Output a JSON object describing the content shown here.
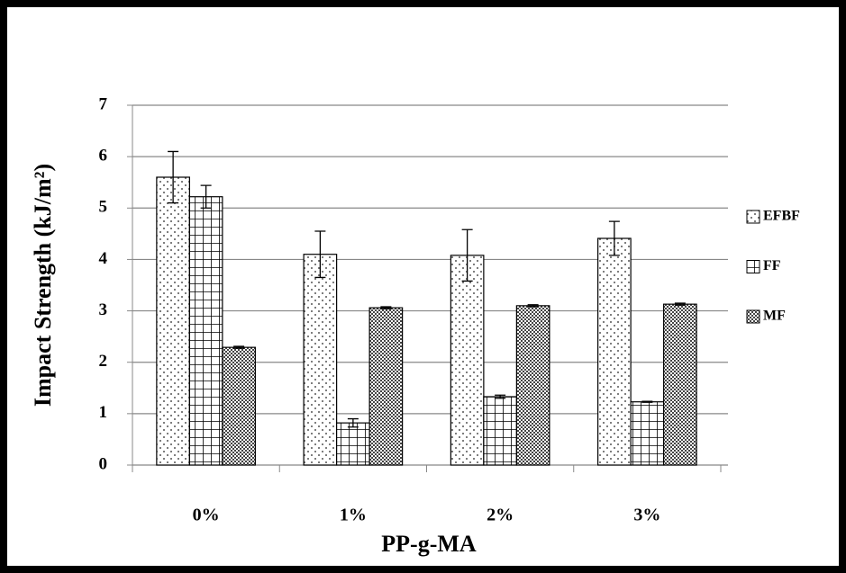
{
  "chart_data": {
    "type": "bar",
    "x_label": "PP-g-MA",
    "y_label": "Impact  Strength (kJ/m²)",
    "categories": [
      "0%",
      "1%",
      "2%",
      "3%"
    ],
    "series": [
      {
        "name": "EFBF",
        "pattern": "dots",
        "values": [
          5.6,
          4.1,
          4.08,
          4.41
        ],
        "errors": [
          0.5,
          0.45,
          0.5,
          0.33
        ]
      },
      {
        "name": "FF",
        "pattern": "grid",
        "values": [
          5.22,
          0.82,
          1.33,
          1.23
        ],
        "errors": [
          0.22,
          0.08,
          0.03,
          0.01
        ]
      },
      {
        "name": "MF",
        "pattern": "checker",
        "values": [
          2.29,
          3.06,
          3.1,
          3.13
        ],
        "errors": [
          0.02,
          0.02,
          0.02,
          0.02
        ]
      }
    ],
    "ylim": [
      0,
      7
    ],
    "yticks": [
      0,
      1,
      2,
      3,
      4,
      5,
      6,
      7
    ],
    "grid": true,
    "legend": "right"
  }
}
